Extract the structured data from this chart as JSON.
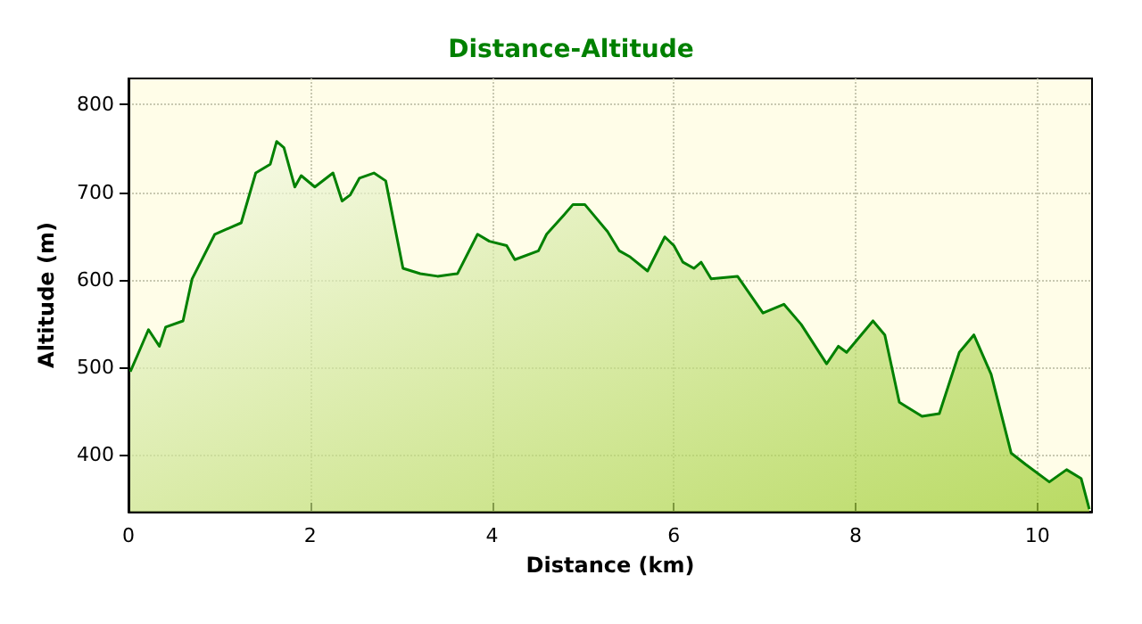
{
  "chart_data": {
    "type": "area",
    "title": "Distance-Altitude",
    "xlabel": "Distance (km)",
    "ylabel": "Altitude (m)",
    "x": [
      0.02,
      0.1,
      0.22,
      0.34,
      0.41,
      0.6,
      0.7,
      0.95,
      1.24,
      1.4,
      1.56,
      1.63,
      1.71,
      1.83,
      1.9,
      2.05,
      2.25,
      2.35,
      2.44,
      2.54,
      2.7,
      2.83,
      3.02,
      3.21,
      3.4,
      3.62,
      3.84,
      3.97,
      4.16,
      4.25,
      4.51,
      4.6,
      4.79,
      4.89,
      5.02,
      5.27,
      5.4,
      5.52,
      5.71,
      5.9,
      6.0,
      6.1,
      6.22,
      6.3,
      6.41,
      6.7,
      6.98,
      7.21,
      7.4,
      7.68,
      7.81,
      7.9,
      8.19,
      8.32,
      8.48,
      8.73,
      8.92,
      9.14,
      9.3,
      9.49,
      9.71,
      9.87,
      10.13,
      10.32,
      10.48,
      10.57
    ],
    "series": [
      {
        "color": "#008000",
        "values": [
          495,
          514,
          543,
          524,
          546,
          553,
          601,
          652,
          665,
          722,
          732,
          758,
          751,
          706,
          719,
          706,
          722,
          690,
          697,
          716,
          722,
          713,
          613,
          607,
          604,
          607,
          652,
          644,
          639,
          623,
          633,
          652,
          674,
          686,
          686,
          655,
          633,
          626,
          610,
          649,
          639,
          620,
          613,
          620,
          601,
          604,
          562,
          572,
          549,
          504,
          524,
          517,
          553,
          537,
          460,
          444,
          447,
          517,
          537,
          492,
          402,
          389,
          369,
          383,
          373,
          338
        ]
      }
    ],
    "xlim": [
      0,
      10.6
    ],
    "xticks": [
      0,
      2,
      4,
      6,
      8,
      10
    ],
    "ylim": [
      335,
      830
    ],
    "yticks": [
      400,
      500,
      600,
      700,
      800
    ],
    "grid": true,
    "marker": "none",
    "line_style": "solid"
  }
}
